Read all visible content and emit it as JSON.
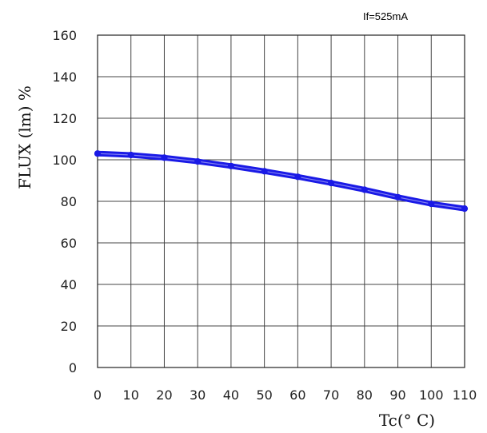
{
  "chart_data": {
    "type": "line",
    "title": "",
    "annotation": "If=525mA",
    "xlabel": "Tc(° C)",
    "ylabel": "FLUX (lm) %",
    "xlim": [
      0,
      110
    ],
    "ylim": [
      0,
      160
    ],
    "x_ticks": [
      0,
      10,
      20,
      30,
      40,
      50,
      60,
      70,
      80,
      90,
      100,
      110
    ],
    "y_ticks": [
      0,
      20,
      40,
      60,
      80,
      100,
      120,
      140,
      160
    ],
    "grid": true,
    "series": [
      {
        "color": "#1a1ae6",
        "x": [
          0,
          10,
          20,
          30,
          40,
          50,
          60,
          70,
          80,
          90,
          100,
          110
        ],
        "y": [
          103,
          102.3,
          101,
          99.2,
          97,
          94.5,
          91.8,
          88.8,
          85.6,
          82,
          78.8,
          76.5
        ]
      }
    ]
  }
}
